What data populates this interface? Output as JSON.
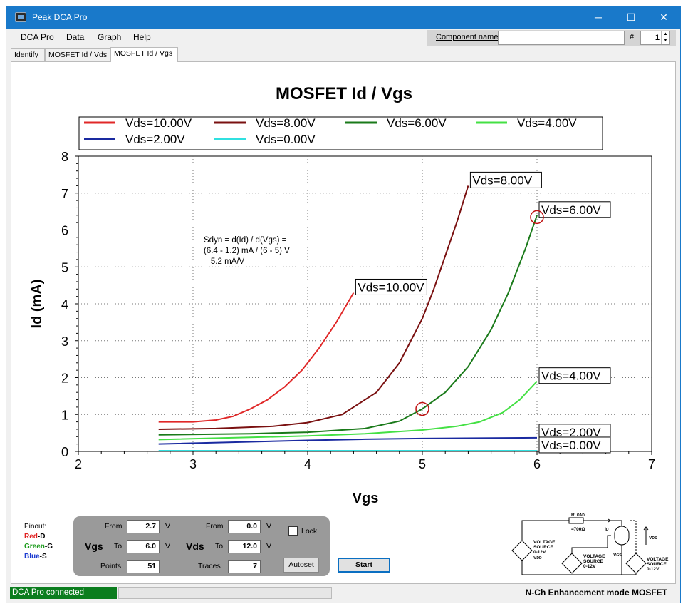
{
  "window": {
    "title": "Peak DCA Pro",
    "minimize": "─",
    "maximize": "☐",
    "close": "✕"
  },
  "menu": [
    "DCA Pro",
    "Data",
    "Graph",
    "Help"
  ],
  "component": {
    "label": "Component name",
    "value": "",
    "hash": "#",
    "number": "1"
  },
  "tabs": [
    "Identify",
    "MOSFET Id / Vds",
    "MOSFET Id / Vgs"
  ],
  "active_tab": 2,
  "annotation": {
    "line1": "Sdyn = d(Id) / d(Vgs) =",
    "line2": "(6.4 - 1.2) mA / (6 - 5) V",
    "line3": "= 5.2 mA/V"
  },
  "chart_data": {
    "type": "line",
    "title": "MOSFET Id / Vgs",
    "xlabel": "Vgs",
    "ylabel": "Id (mA)",
    "xlim": [
      2,
      7
    ],
    "ylim": [
      0,
      8
    ],
    "xticks": [
      2,
      3,
      4,
      5,
      6,
      7
    ],
    "yticks": [
      0,
      1,
      2,
      3,
      4,
      5,
      6,
      7,
      8
    ],
    "grid": true,
    "legend_position": "top",
    "series": [
      {
        "name": "Vds=10.00V",
        "color": "#e02828",
        "x": [
          2.7,
          3.0,
          3.2,
          3.35,
          3.5,
          3.65,
          3.8,
          3.95,
          4.1,
          4.25,
          4.4
        ],
        "y": [
          0.8,
          0.8,
          0.85,
          0.95,
          1.15,
          1.4,
          1.75,
          2.2,
          2.8,
          3.5,
          4.3
        ]
      },
      {
        "name": "Vds=8.00V",
        "color": "#7a1010",
        "x": [
          2.7,
          3.2,
          3.7,
          4.0,
          4.3,
          4.6,
          4.8,
          5.0,
          5.1,
          5.2,
          5.3,
          5.4
        ],
        "y": [
          0.6,
          0.62,
          0.68,
          0.78,
          1.0,
          1.6,
          2.4,
          3.6,
          4.4,
          5.3,
          6.2,
          7.2
        ]
      },
      {
        "name": "Vds=6.00V",
        "color": "#1a7a1a",
        "x": [
          2.7,
          3.5,
          4.0,
          4.5,
          4.8,
          5.0,
          5.2,
          5.4,
          5.6,
          5.75,
          5.9,
          6.0
        ],
        "y": [
          0.45,
          0.48,
          0.52,
          0.62,
          0.82,
          1.15,
          1.6,
          2.3,
          3.3,
          4.3,
          5.5,
          6.4
        ]
      },
      {
        "name": "Vds=4.00V",
        "color": "#44e044",
        "x": [
          2.7,
          3.5,
          4.0,
          4.5,
          5.0,
          5.3,
          5.5,
          5.7,
          5.85,
          6.0
        ],
        "y": [
          0.32,
          0.38,
          0.42,
          0.48,
          0.58,
          0.68,
          0.8,
          1.05,
          1.4,
          1.9
        ]
      },
      {
        "name": "Vds=2.00V",
        "color": "#1a2aa0",
        "x": [
          2.7,
          3.5,
          4.0,
          4.5,
          5.0,
          5.5,
          6.0
        ],
        "y": [
          0.2,
          0.26,
          0.3,
          0.33,
          0.35,
          0.36,
          0.37
        ]
      },
      {
        "name": "Vds=0.00V",
        "color": "#30e0e0",
        "x": [
          2.7,
          6.0
        ],
        "y": [
          0.02,
          0.02
        ]
      }
    ],
    "markers": [
      {
        "x": 5.0,
        "y": 1.15
      },
      {
        "x": 6.0,
        "y": 6.35
      }
    ]
  },
  "pinout": {
    "title": "Pinout:",
    "d": "Red",
    "d_pin": "-D",
    "g": "Green",
    "g_pin": "-G",
    "s": "Blue",
    "s_pin": "-S"
  },
  "controls": {
    "vgs": {
      "label": "Vgs",
      "from_label": "From",
      "from": "2.7",
      "to_label": "To",
      "to": "6.0",
      "unit": "V",
      "points_label": "Points",
      "points": "51"
    },
    "vds": {
      "label": "Vds",
      "from_label": "From",
      "from": "0.0",
      "to_label": "To",
      "to": "12.0",
      "unit": "V",
      "traces_label": "Traces",
      "traces": "7"
    },
    "lock": "Lock",
    "autoset": "Autoset",
    "start": "Start"
  },
  "schematic": {
    "rload": "LOAD",
    "rload_prefix": "R",
    "rval": "≈700Ω",
    "id": "I",
    "id_sub": "D",
    "vds": "V",
    "vds_sub": "DS",
    "vgs": "V",
    "vgs_sub": "GS",
    "src1": [
      "VOLTAGE",
      "SOURCE",
      "0-12V"
    ],
    "vdd": "V",
    "vdd_sub": "DD",
    "src2": [
      "VOLTAGE",
      "SOURCE",
      "0-12V"
    ],
    "src3": [
      "VOLTAGE",
      "SOURCE",
      "0-12V"
    ]
  },
  "status": {
    "left": "DCA Pro connected",
    "right": "N-Ch Enhancement mode MOSFET"
  }
}
